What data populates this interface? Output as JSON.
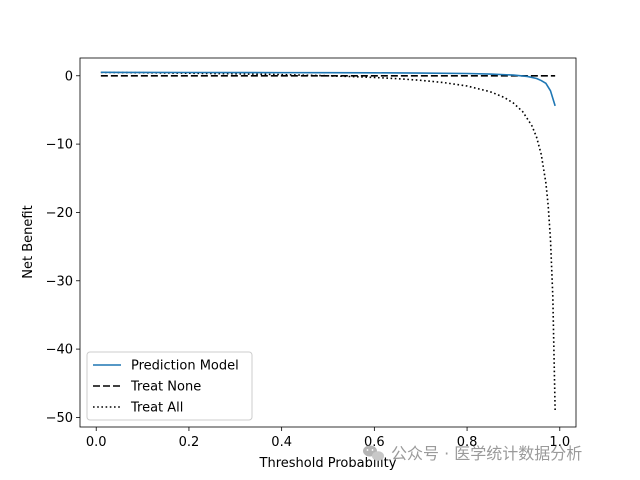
{
  "chart_data": {
    "type": "line",
    "title": "",
    "xlabel": "Threshold Probability",
    "ylabel": "Net Benefit",
    "xlim": [
      -0.035,
      1.035
    ],
    "ylim": [
      -51.4,
      2.6
    ],
    "xticks": [
      0.0,
      0.2,
      0.4,
      0.6,
      0.8,
      1.0
    ],
    "xtick_labels": [
      "0.0",
      "0.2",
      "0.4",
      "0.6",
      "0.8",
      "1.0"
    ],
    "yticks": [
      0,
      -10,
      -20,
      -30,
      -40,
      -50
    ],
    "ytick_labels": [
      "0",
      "−10",
      "−20",
      "−30",
      "−40",
      "−50"
    ],
    "grid": false,
    "legend_position": "lower-left",
    "series": [
      {
        "name": "Prediction Model",
        "color": "#1f77b4",
        "style": "solid",
        "x": [
          0.01,
          0.1,
          0.2,
          0.3,
          0.4,
          0.5,
          0.6,
          0.7,
          0.8,
          0.85,
          0.9,
          0.93,
          0.95,
          0.96,
          0.97,
          0.98,
          0.99
        ],
        "y": [
          0.5,
          0.49,
          0.48,
          0.47,
          0.46,
          0.45,
          0.43,
          0.4,
          0.33,
          0.25,
          0.1,
          -0.1,
          -0.4,
          -0.7,
          -1.1,
          -2.2,
          -4.4
        ]
      },
      {
        "name": "Treat None",
        "color": "#000000",
        "style": "dashed",
        "x": [
          0.01,
          0.99
        ],
        "y": [
          0,
          0
        ]
      },
      {
        "name": "Treat All",
        "color": "#000000",
        "style": "dotted",
        "x": [
          0.01,
          0.1,
          0.2,
          0.3,
          0.4,
          0.5,
          0.55,
          0.6,
          0.65,
          0.7,
          0.75,
          0.8,
          0.85,
          0.88,
          0.9,
          0.92,
          0.94,
          0.95,
          0.96,
          0.97,
          0.975,
          0.98,
          0.985,
          0.99
        ],
        "y": [
          0.495,
          0.444,
          0.375,
          0.286,
          0.167,
          0.0,
          -0.111,
          -0.25,
          -0.429,
          -0.667,
          -1.0,
          -1.5,
          -2.333,
          -3.167,
          -4.0,
          -5.25,
          -7.333,
          -9.0,
          -11.5,
          -15.667,
          -19.0,
          -24.0,
          -32.333,
          -49.0
        ]
      }
    ]
  },
  "watermark": {
    "text": "公众号 · 医学统计数据分析"
  }
}
